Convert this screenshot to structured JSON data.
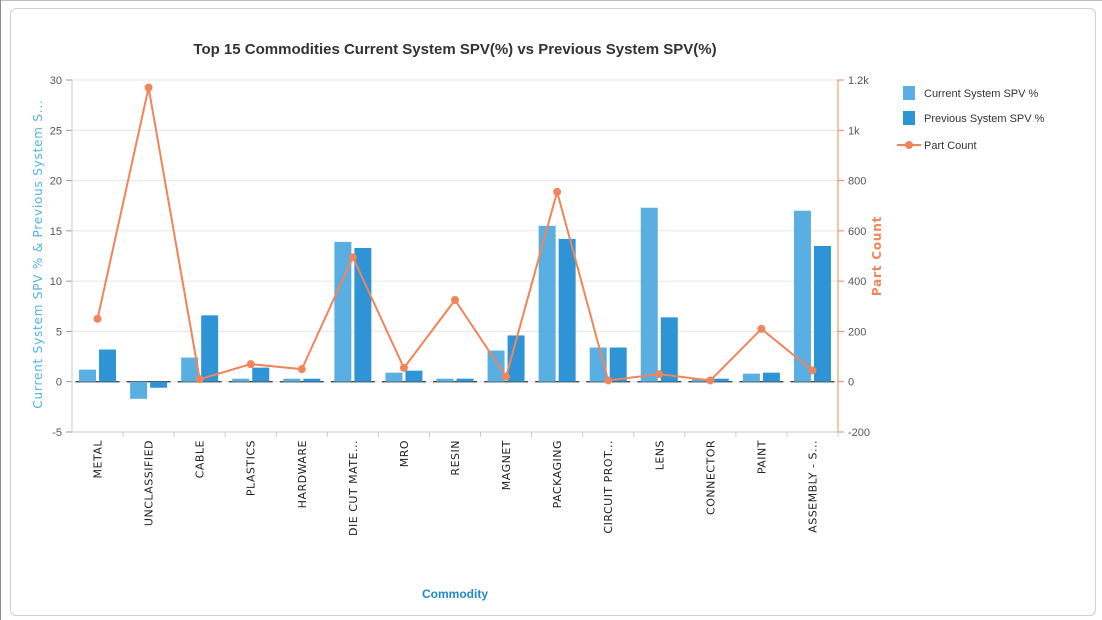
{
  "chart_data": {
    "type": "bar",
    "title": "Top 15 Commodities Current System SPV(%) vs Previous System SPV(%)",
    "xlabel": "Commodity",
    "ylabel_left": "Current System SPV % & Previous System S...",
    "ylabel_right": "Part Count",
    "categories": [
      "METAL",
      "UNCLASSIFIED",
      "CABLE",
      "PLASTICS",
      "HARDWARE",
      "DIE CUT MATE...",
      "MRO",
      "RESIN",
      "MAGNET",
      "PACKAGING",
      "CIRCUIT PROT...",
      "LENS",
      "CONNECTOR",
      "PAINT",
      "ASSEMBLY - S..."
    ],
    "y_left_ticks": [
      "30",
      "25",
      "20",
      "15",
      "10",
      "5",
      "0",
      "-5"
    ],
    "y_right_ticks": [
      "1.2k",
      "1k",
      "800",
      "600",
      "400",
      "200",
      "0",
      "-200"
    ],
    "ylim_left": [
      -5,
      30
    ],
    "ylim_right": [
      -200,
      1200
    ],
    "legend_position": "right",
    "series": [
      {
        "name": "Current System SPV %",
        "type": "bar",
        "axis": "left",
        "color": "#5aafe2",
        "values": [
          1.2,
          -1.7,
          2.4,
          0.3,
          0.3,
          13.9,
          0.9,
          0.3,
          3.1,
          15.5,
          3.4,
          17.3,
          0.3,
          0.8,
          17.0
        ]
      },
      {
        "name": "Previous System SPV %",
        "type": "bar",
        "axis": "left",
        "color": "#2f94d6",
        "values": [
          3.2,
          -0.6,
          6.6,
          1.4,
          0.3,
          13.3,
          1.1,
          0.3,
          4.6,
          14.2,
          3.4,
          6.4,
          0.3,
          0.9,
          13.5
        ]
      },
      {
        "name": "Part Count",
        "type": "line",
        "axis": "right",
        "color": "#f0845a",
        "values": [
          250,
          1170,
          10,
          70,
          50,
          495,
          55,
          325,
          20,
          755,
          5,
          30,
          5,
          210,
          45
        ]
      }
    ]
  }
}
